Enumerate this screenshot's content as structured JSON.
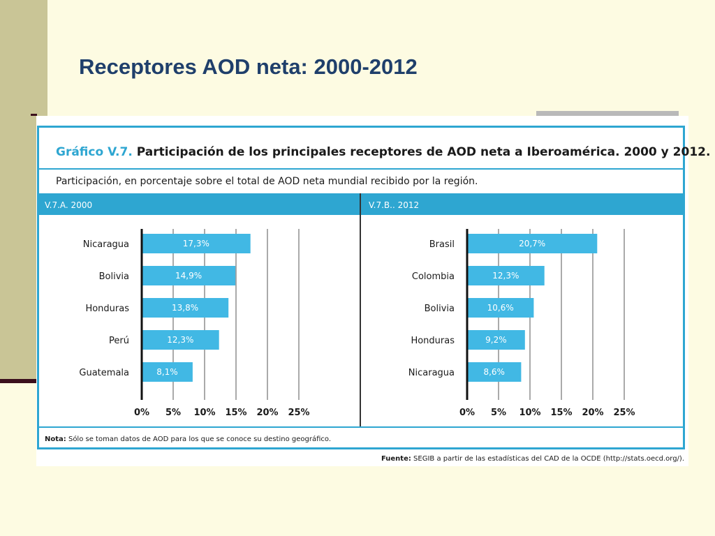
{
  "slide": {
    "title": "Receptores AOD neta: 2000-2012"
  },
  "figure": {
    "title_prefix": "Gráfico V.7.",
    "title_main": "Participación de los principales receptores de AOD neta a Iberoamérica. 2000 y 2012.",
    "subtitle": "Participación, en porcentaje sobre el total de AOD neta mundial recibido por la región.",
    "note_label": "Nota:",
    "note_text": "Sólo se toman datos de AOD para los que se conoce su destino geográfico.",
    "source_label": "Fuente:",
    "source_text": "SEGIB a partir de las estadísticas del CAD de la OCDE (http://stats.oecd.org/)."
  },
  "colors": {
    "bar": "#41b8e4",
    "accent": "#2ea6d1",
    "title": "#1f3f6b"
  },
  "chart_data": [
    {
      "type": "bar",
      "orientation": "horizontal",
      "panel_label": "V.7.A. 2000",
      "categories": [
        "Nicaragua",
        "Bolivia",
        "Honduras",
        "Perú",
        "Guatemala"
      ],
      "values": [
        17.3,
        14.9,
        13.8,
        12.3,
        8.1
      ],
      "value_labels": [
        "17,3%",
        "14,9%",
        "13,8%",
        "12,3%",
        "8,1%"
      ],
      "x_ticks": [
        0,
        5,
        10,
        15,
        20,
        25
      ],
      "x_tick_labels": [
        "0%",
        "5%",
        "10%",
        "15%",
        "20%",
        "25%"
      ],
      "xlim": [
        0,
        25
      ],
      "grid": true
    },
    {
      "type": "bar",
      "orientation": "horizontal",
      "panel_label": "V.7.B.. 2012",
      "categories": [
        "Brasil",
        "Colombia",
        "Bolivia",
        "Honduras",
        "Nicaragua"
      ],
      "values": [
        20.7,
        12.3,
        10.6,
        9.2,
        8.6
      ],
      "value_labels": [
        "20,7%",
        "12,3%",
        "10,6%",
        "9,2%",
        "8,6%"
      ],
      "x_ticks": [
        0,
        5,
        10,
        15,
        20,
        25
      ],
      "x_tick_labels": [
        "0%",
        "5%",
        "10%",
        "15%",
        "20%",
        "25%"
      ],
      "xlim": [
        0,
        25
      ],
      "grid": true
    }
  ]
}
